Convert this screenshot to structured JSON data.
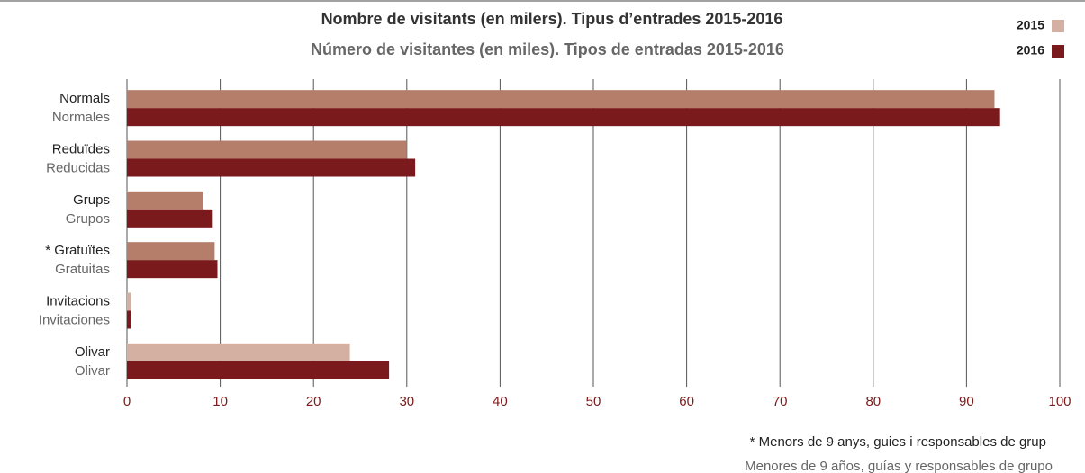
{
  "chart_data": {
    "type": "bar",
    "orientation": "horizontal",
    "title": "Nombre de visitants (en milers). Tipus d’entrades 2015-2016",
    "subtitle": "Número de visitantes (en miles). Tipos de entradas 2015-2016",
    "categories": [
      "Normals",
      "Reduïdes",
      "Grups",
      "* Gratuïtes",
      "Invitacions",
      "Olivar"
    ],
    "categories_alt": [
      "Normales",
      "Reducidas",
      "Grupos",
      "Gratuitas",
      "Invitaciones",
      "Olivar"
    ],
    "series": [
      {
        "name": "2015",
        "color": "#d4b0a2",
        "point_colors": [
          "#b57e6b",
          "#b57e6b",
          "#b57e6b",
          "#b57e6b",
          "#d4b0a2",
          "#d4b0a2"
        ],
        "values": [
          93,
          30,
          8.2,
          9.4,
          0.4,
          23.9
        ]
      },
      {
        "name": "2016",
        "color": "#7a1a1c",
        "values": [
          93.6,
          30.9,
          9.2,
          9.7,
          0.4,
          28.1
        ]
      }
    ],
    "xlim": [
      0,
      100
    ],
    "xticks": [
      0,
      10,
      20,
      30,
      40,
      50,
      60,
      70,
      80,
      90,
      100
    ],
    "grid": true,
    "legend": "top-right",
    "notes": [
      "* Menors de 9 anys, guies i responsables de grup",
      "Menores de 9 años, guías y responsables de grupo"
    ]
  }
}
